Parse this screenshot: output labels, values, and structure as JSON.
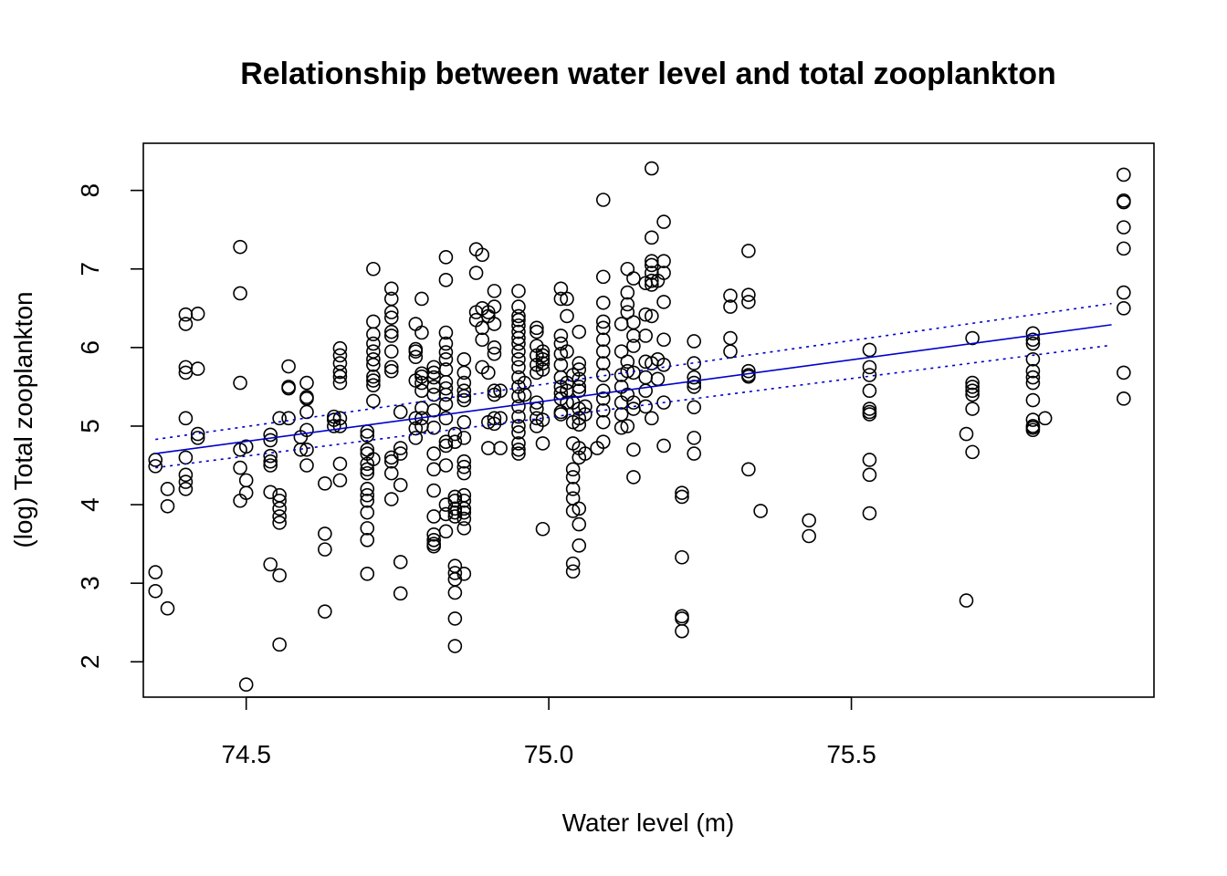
{
  "chart_data": {
    "type": "scatter",
    "title": "Relationship between water level and total zooplankton",
    "xlabel": "Water level (m)",
    "ylabel": "(log) Total zooplankton",
    "xlim": [
      74.33,
      76.0
    ],
    "ylim": [
      1.55,
      8.6
    ],
    "xticks": [
      74.5,
      75.0,
      75.5
    ],
    "xtick_labels": [
      "74.5",
      "75.0",
      "75.5"
    ],
    "yticks": [
      2,
      3,
      4,
      5,
      6,
      7,
      8
    ],
    "ytick_labels": [
      "2",
      "3",
      "4",
      "5",
      "6",
      "7",
      "8"
    ],
    "grid": false,
    "point_color": "#000000",
    "fit_color": "#0000cc",
    "fit_line": {
      "x": [
        74.35,
        75.93
      ],
      "y": [
        4.65,
        6.29
      ]
    },
    "ci_upper": {
      "x": [
        74.35,
        75.93
      ],
      "y": [
        4.83,
        6.56
      ]
    },
    "ci_lower": {
      "x": [
        74.35,
        75.93
      ],
      "y": [
        4.47,
        6.03
      ]
    },
    "points": [
      {
        "x": 74.35,
        "values": [
          4.57,
          4.49,
          3.14,
          2.9
        ]
      },
      {
        "x": 74.37,
        "values": [
          4.2,
          3.98,
          2.68
        ]
      },
      {
        "x": 74.4,
        "values": [
          6.42,
          6.3,
          5.75,
          5.68,
          5.1,
          4.6,
          4.38,
          4.29,
          4.2
        ]
      },
      {
        "x": 74.42,
        "values": [
          6.43,
          5.73,
          4.9,
          4.85
        ]
      },
      {
        "x": 74.49,
        "values": [
          7.28,
          6.69,
          5.55,
          4.7,
          4.47,
          4.05
        ]
      },
      {
        "x": 74.5,
        "values": [
          4.74,
          4.31,
          4.15,
          1.71
        ]
      },
      {
        "x": 74.54,
        "values": [
          4.89,
          4.82,
          4.62,
          4.55,
          4.5,
          4.16,
          3.24
        ]
      },
      {
        "x": 74.555,
        "values": [
          5.1,
          4.12,
          4.05,
          3.95,
          3.85,
          3.77,
          3.1,
          2.22
        ]
      },
      {
        "x": 74.57,
        "values": [
          5.76,
          5.5,
          5.48,
          5.1
        ]
      },
      {
        "x": 74.59,
        "values": [
          4.86,
          4.7
        ]
      },
      {
        "x": 74.6,
        "values": [
          5.55,
          5.37,
          5.35,
          5.18,
          4.95,
          4.7,
          4.5
        ]
      },
      {
        "x": 74.63,
        "values": [
          4.27,
          3.63,
          3.43,
          2.64
        ]
      },
      {
        "x": 74.645,
        "values": [
          5.12,
          5.08,
          5.0
        ]
      },
      {
        "x": 74.655,
        "values": [
          5.99,
          5.9,
          5.8,
          5.69,
          5.63,
          5.55,
          5.1,
          5.0,
          4.52,
          4.31
        ]
      },
      {
        "x": 74.7,
        "values": [
          4.93,
          4.88,
          4.7,
          4.65,
          4.52,
          4.45,
          4.4,
          4.2,
          4.12,
          4.05,
          3.9,
          3.7,
          3.55,
          3.12
        ]
      },
      {
        "x": 74.71,
        "values": [
          7.0,
          6.33,
          6.17,
          6.05,
          5.95,
          5.85,
          5.78,
          5.63,
          5.58,
          5.52,
          5.32,
          4.58
        ]
      },
      {
        "x": 74.74,
        "values": [
          6.75,
          6.62,
          6.45,
          6.38,
          6.2,
          6.15,
          5.95,
          5.75,
          5.7,
          4.6,
          4.55,
          4.4,
          4.07
        ]
      },
      {
        "x": 74.755,
        "values": [
          5.18,
          4.72,
          4.65,
          4.25,
          3.27,
          2.87
        ]
      },
      {
        "x": 74.78,
        "values": [
          6.3,
          5.98,
          5.95,
          5.88,
          5.58,
          5.1,
          4.97,
          4.85
        ]
      },
      {
        "x": 74.79,
        "values": [
          6.62,
          6.19,
          5.67,
          5.63,
          5.55,
          5.45,
          5.23,
          5.1,
          5.0
        ]
      },
      {
        "x": 74.81,
        "values": [
          5.75,
          5.68,
          5.62,
          5.5,
          5.4,
          5.2,
          4.98,
          4.65,
          4.45,
          4.18,
          3.85,
          3.62,
          3.55,
          3.5,
          3.47
        ]
      },
      {
        "x": 74.83,
        "values": [
          7.15,
          6.86,
          6.19,
          6.05,
          5.94,
          5.85,
          5.72,
          5.56,
          5.48,
          5.4,
          5.28,
          5.1,
          4.8,
          4.75,
          4.5,
          4.0,
          3.88,
          3.66
        ]
      },
      {
        "x": 74.845,
        "values": [
          4.9,
          4.8,
          4.1,
          4.05,
          3.95,
          3.9,
          3.85,
          3.22,
          3.13,
          3.05,
          2.88,
          2.55,
          2.2
        ]
      },
      {
        "x": 74.86,
        "values": [
          5.85,
          5.68,
          5.55,
          5.45,
          5.38,
          5.33,
          5.05,
          4.85,
          4.55,
          4.48,
          4.4,
          4.12,
          4.05,
          3.95,
          3.9,
          3.82,
          3.7,
          3.12
        ]
      },
      {
        "x": 74.88,
        "values": [
          7.25,
          6.95,
          6.45,
          6.35
        ]
      },
      {
        "x": 74.89,
        "values": [
          7.18,
          6.5,
          6.25,
          5.75,
          6.1
        ]
      },
      {
        "x": 74.9,
        "values": [
          6.45,
          6.4,
          5.68,
          5.05,
          4.72
        ]
      },
      {
        "x": 74.91,
        "values": [
          6.72,
          6.52,
          6.3,
          6.0,
          5.92,
          5.45,
          5.4,
          5.1,
          5.03
        ]
      },
      {
        "x": 74.92,
        "values": [
          5.45,
          5.1,
          4.72
        ]
      },
      {
        "x": 74.95,
        "values": [
          6.72,
          6.52,
          6.4,
          6.35,
          6.28,
          6.2,
          6.12,
          6.05,
          5.95,
          5.85,
          5.75,
          5.62,
          5.5,
          5.38,
          5.25,
          5.12,
          5.0,
          4.92,
          4.78,
          4.7,
          4.65
        ]
      },
      {
        "x": 74.96,
        "values": [
          5.55,
          5.4
        ]
      },
      {
        "x": 74.98,
        "values": [
          6.25,
          6.2,
          6.02,
          5.9,
          5.78,
          5.68,
          5.3,
          5.22,
          5.1,
          5.0
        ]
      },
      {
        "x": 74.99,
        "values": [
          5.95,
          5.9,
          5.85,
          5.8,
          5.72,
          5.08,
          4.78,
          3.69
        ]
      },
      {
        "x": 75.02,
        "values": [
          6.75,
          6.62,
          6.15,
          6.05,
          5.92,
          5.78,
          5.62,
          5.5,
          5.42,
          5.35,
          5.18,
          5.15
        ]
      },
      {
        "x": 75.03,
        "values": [
          6.62,
          6.4,
          5.95,
          5.55,
          5.45,
          5.3
        ]
      },
      {
        "x": 75.04,
        "values": [
          5.65,
          5.3,
          5.05,
          4.78,
          4.45,
          4.35,
          4.2,
          4.08,
          3.92,
          3.25,
          3.15
        ]
      },
      {
        "x": 75.05,
        "values": [
          6.2,
          5.8,
          5.72,
          5.6,
          5.5,
          5.45,
          5.22,
          5.1,
          5.02,
          4.72,
          4.6,
          3.95,
          3.75,
          3.48
        ]
      },
      {
        "x": 75.06,
        "values": [
          5.25,
          5.15,
          4.65
        ]
      },
      {
        "x": 75.08,
        "values": [
          4.72
        ]
      },
      {
        "x": 75.09,
        "values": [
          7.88,
          6.9,
          6.57,
          6.33,
          6.25,
          6.1,
          5.95,
          5.8,
          5.65,
          5.45,
          5.35,
          5.2,
          5.05,
          4.8
        ]
      },
      {
        "x": 75.12,
        "values": [
          6.3,
          5.95,
          5.65,
          5.5,
          5.3,
          5.15,
          4.98
        ]
      },
      {
        "x": 75.13,
        "values": [
          7.0,
          6.7,
          6.55,
          6.45,
          5.82,
          5.7,
          5.4,
          5.0
        ]
      },
      {
        "x": 75.14,
        "values": [
          6.88,
          6.32,
          6.15,
          6.02,
          5.68,
          5.3,
          5.22,
          4.7,
          4.35
        ]
      },
      {
        "x": 75.16,
        "values": [
          6.82,
          6.42,
          6.15,
          5.82,
          5.62,
          5.45,
          5.25
        ]
      },
      {
        "x": 75.17,
        "values": [
          8.28,
          7.4,
          7.1,
          7.05,
          6.95,
          6.85,
          6.8,
          6.4,
          5.8,
          5.1
        ]
      },
      {
        "x": 75.18,
        "values": [
          6.85,
          5.85,
          5.6
        ]
      },
      {
        "x": 75.19,
        "values": [
          7.6,
          7.1,
          6.95,
          6.58,
          6.1,
          5.78,
          5.3,
          4.75
        ]
      },
      {
        "x": 75.22,
        "values": [
          4.15,
          4.1,
          3.33,
          2.58,
          2.55,
          2.39
        ]
      },
      {
        "x": 75.24,
        "values": [
          6.08,
          5.8,
          5.62,
          5.55,
          5.5,
          5.24,
          4.85,
          4.65
        ]
      },
      {
        "x": 75.3,
        "values": [
          6.66,
          6.52,
          6.12,
          5.95
        ]
      },
      {
        "x": 75.33,
        "values": [
          7.23,
          6.67,
          6.58,
          5.7,
          5.65,
          5.63,
          4.45
        ]
      },
      {
        "x": 75.35,
        "values": [
          3.92
        ]
      },
      {
        "x": 75.43,
        "values": [
          3.8,
          3.6
        ]
      },
      {
        "x": 75.53,
        "values": [
          5.97,
          5.75,
          5.65,
          5.45,
          5.22,
          5.18,
          5.15,
          4.57,
          4.38,
          3.89
        ]
      },
      {
        "x": 75.69,
        "values": [
          4.9,
          2.78
        ]
      },
      {
        "x": 75.7,
        "values": [
          6.12,
          5.55,
          5.5,
          5.45,
          5.4,
          5.22,
          4.67
        ]
      },
      {
        "x": 75.8,
        "values": [
          6.18,
          6.1,
          6.05,
          5.85,
          5.7,
          5.62,
          5.55,
          5.33,
          5.08,
          5.0,
          4.98,
          4.95
        ]
      },
      {
        "x": 75.82,
        "values": [
          5.1
        ]
      },
      {
        "x": 75.95,
        "values": [
          8.2,
          7.87,
          7.85,
          7.53,
          7.26,
          6.7,
          6.5,
          5.68,
          5.35
        ]
      }
    ]
  }
}
